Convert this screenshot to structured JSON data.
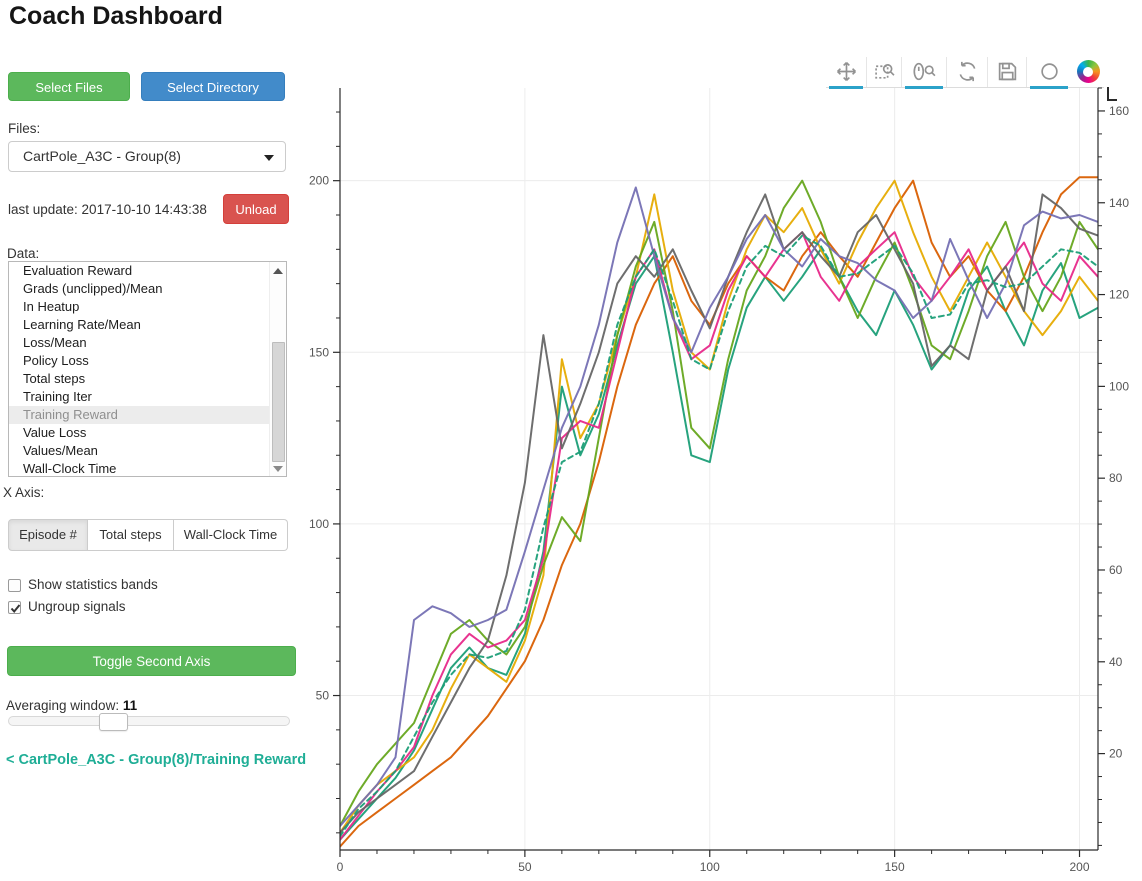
{
  "page": {
    "title": "Coach Dashboard"
  },
  "sidebar": {
    "select_files_label": "Select Files",
    "select_directory_label": "Select Directory",
    "files_label": "Files:",
    "files_selected": "CartPole_A3C - Group(8)",
    "last_update": "last update: 2017-10-10 14:43:38",
    "unload_label": "Unload",
    "data_label": "Data:",
    "data_items": [
      "Evaluation Reward",
      "Grads (unclipped)/Mean",
      "In Heatup",
      "Learning Rate/Mean",
      "Loss/Mean",
      "Policy Loss",
      "Total steps",
      "Training Iter",
      "Training Reward",
      "Value Loss",
      "Values/Mean",
      "Wall-Clock Time"
    ],
    "data_selected": "Training Reward",
    "x_axis_label": "X Axis:",
    "x_axis_options": [
      "Episode #",
      "Total steps",
      "Wall-Clock Time"
    ],
    "x_axis_selected": "Episode #",
    "show_bands_label": "Show statistics bands",
    "show_bands_checked": false,
    "ungroup_label": "Ungroup signals",
    "ungroup_checked": true,
    "toggle_second_axis_label": "Toggle Second Axis",
    "averaging_label": "Averaging window:",
    "averaging_value": "11",
    "breadcrumb": "< CartPole_A3C - Group(8)/Training Reward"
  },
  "toolbar": {
    "accent_color": "#2ba2c9",
    "tools": [
      {
        "icon": "pan-icon",
        "active": true
      },
      {
        "icon": "box-zoom-icon",
        "active": false
      },
      {
        "icon": "wheel-zoom-icon",
        "active": true
      },
      {
        "icon": "reset-icon",
        "active": false
      },
      {
        "icon": "save-icon",
        "active": false
      },
      {
        "icon": "hover-icon",
        "active": true
      },
      {
        "icon": "bokeh-logo-icon",
        "active": false
      }
    ]
  },
  "chart_data": {
    "type": "line",
    "title": "",
    "xlabel": "",
    "ylabel": "",
    "grid": true,
    "x_axis": {
      "range": [
        0,
        205
      ],
      "major_ticks": [
        0,
        50,
        100,
        150,
        200
      ],
      "minor_step": 10
    },
    "y_axis_left": {
      "range": [
        5,
        227
      ],
      "major_ticks": [
        50,
        100,
        150,
        200
      ],
      "minor_step": 10
    },
    "y_axis_right": {
      "range": [
        -1,
        165
      ],
      "major_ticks": [
        20,
        40,
        60,
        80,
        100,
        120,
        140,
        160
      ],
      "minor_step": 5
    },
    "x_start": 0,
    "x_step": 5,
    "axis_color": "#2b2b2b",
    "grid_color": "#ececec",
    "series": [
      {
        "id": "line-1",
        "color": "#1b9e77",
        "dash": null,
        "values": [
          8,
          14,
          20,
          26,
          34,
          46,
          58,
          64,
          58,
          56,
          68,
          92,
          140,
          120,
          132,
          152,
          170,
          178,
          150,
          120,
          118,
          145,
          163,
          172,
          165,
          172,
          180,
          172,
          162,
          155,
          168,
          158,
          145,
          152,
          168,
          175,
          162,
          152,
          168,
          176,
          160,
          163
        ]
      },
      {
        "id": "line-2",
        "color": "#d95f02",
        "dash": null,
        "values": [
          6,
          12,
          16,
          20,
          24,
          28,
          32,
          38,
          44,
          52,
          60,
          72,
          88,
          100,
          118,
          140,
          158,
          170,
          178,
          165,
          158,
          170,
          178,
          172,
          168,
          178,
          185,
          178,
          172,
          182,
          192,
          200,
          182,
          172,
          178,
          168,
          162,
          172,
          185,
          196,
          201,
          201
        ]
      },
      {
        "id": "line-3",
        "color": "#e6ab02",
        "dash": null,
        "values": [
          10,
          18,
          24,
          28,
          32,
          40,
          52,
          62,
          58,
          54,
          66,
          85,
          148,
          125,
          135,
          155,
          172,
          196,
          168,
          150,
          145,
          165,
          180,
          190,
          185,
          192,
          180,
          170,
          182,
          192,
          200,
          185,
          172,
          162,
          172,
          182,
          172,
          162,
          155,
          162,
          172,
          165
        ]
      },
      {
        "id": "line-4",
        "color": "#66a61e",
        "dash": null,
        "values": [
          12,
          22,
          30,
          36,
          42,
          55,
          68,
          72,
          66,
          62,
          70,
          88,
          102,
          95,
          125,
          155,
          175,
          188,
          162,
          128,
          122,
          148,
          168,
          178,
          192,
          200,
          188,
          172,
          160,
          172,
          182,
          168,
          152,
          148,
          162,
          178,
          188,
          172,
          162,
          172,
          188,
          180
        ]
      },
      {
        "id": "line-5",
        "color": "#e7298a",
        "dash": null,
        "values": [
          8,
          15,
          22,
          28,
          35,
          50,
          62,
          68,
          64,
          66,
          72,
          90,
          125,
          130,
          128,
          150,
          172,
          180,
          160,
          148,
          152,
          168,
          178,
          172,
          180,
          185,
          172,
          165,
          175,
          180,
          185,
          172,
          165,
          172,
          180,
          168,
          175,
          182,
          170,
          165,
          178,
          172
        ]
      },
      {
        "id": "line-6",
        "color": "#666666",
        "dash": null,
        "values": [
          10,
          16,
          20,
          24,
          28,
          38,
          48,
          58,
          66,
          85,
          112,
          155,
          122,
          135,
          150,
          170,
          178,
          172,
          180,
          168,
          157,
          172,
          185,
          196,
          180,
          185,
          178,
          172,
          185,
          190,
          180,
          170,
          146,
          152,
          148,
          168,
          175,
          162,
          196,
          192,
          186,
          184
        ]
      },
      {
        "id": "line-7",
        "color": "#7570b3",
        "dash": null,
        "values": [
          12,
          18,
          24,
          32,
          72,
          76,
          74,
          70,
          72,
          75,
          92,
          110,
          128,
          140,
          158,
          182,
          198,
          178,
          160,
          150,
          163,
          172,
          183,
          190,
          180,
          175,
          183,
          178,
          176,
          171,
          168,
          160,
          165,
          183,
          171,
          160,
          170,
          187,
          191,
          189,
          190,
          188
        ]
      },
      {
        "id": "line-8-dashed",
        "color": "#1b9e77",
        "dash": "5,4",
        "values": [
          9,
          17,
          22,
          28,
          38,
          48,
          56,
          62,
          61,
          63,
          75,
          99,
          118,
          121,
          135,
          158,
          172,
          180,
          165,
          148,
          145,
          162,
          175,
          181,
          178,
          184,
          181,
          172,
          173,
          177,
          181,
          173,
          160,
          161,
          170,
          171,
          169,
          170,
          175,
          180,
          179,
          175
        ]
      }
    ]
  }
}
